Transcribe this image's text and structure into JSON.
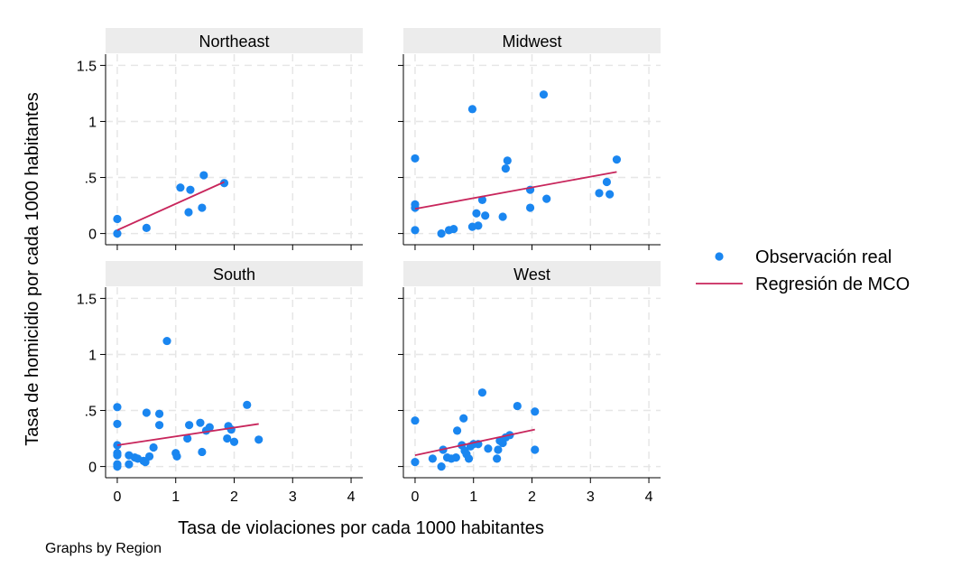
{
  "chart_data": {
    "type": "scatter",
    "xlabel": "Tasa de violaciones por cada 1000 habitantes",
    "ylabel": "Tasa de homicidio por cada 1000 habitantes",
    "xticks": [
      "0",
      "1",
      "2",
      "3",
      "4"
    ],
    "yticks": [
      "0",
      ".5",
      "1",
      "1.5"
    ],
    "xlim": [
      -0.2,
      4.2
    ],
    "ylim": [
      -0.1,
      1.6
    ],
    "grid": true,
    "legend_position": "right",
    "legend": [
      {
        "label": "Observación real",
        "kind": "point",
        "color": "#1a86f0"
      },
      {
        "label": "Regresión de MCO",
        "kind": "line",
        "color": "#c8265c"
      }
    ],
    "colors": {
      "points": "#1a86f0",
      "fit_line": "#c8265c",
      "strip": "#ececec",
      "grid": "#e6e6e6"
    },
    "panels": [
      {
        "title": "Northeast",
        "points": [
          [
            0.0,
            0.0
          ],
          [
            0.0,
            0.13
          ],
          [
            0.5,
            0.05
          ],
          [
            1.08,
            0.41
          ],
          [
            1.25,
            0.39
          ],
          [
            1.22,
            0.19
          ],
          [
            1.45,
            0.23
          ],
          [
            1.48,
            0.52
          ],
          [
            1.83,
            0.45
          ]
        ],
        "fit": [
          [
            0.0,
            0.03
          ],
          [
            1.83,
            0.46
          ]
        ]
      },
      {
        "title": "Midwest",
        "points": [
          [
            0.0,
            0.67
          ],
          [
            0.0,
            0.26
          ],
          [
            0.0,
            0.23
          ],
          [
            0.0,
            0.03
          ],
          [
            0.45,
            0.0
          ],
          [
            0.58,
            0.03
          ],
          [
            0.66,
            0.04
          ],
          [
            0.98,
            1.11
          ],
          [
            0.98,
            0.06
          ],
          [
            1.05,
            0.18
          ],
          [
            1.08,
            0.07
          ],
          [
            1.15,
            0.3
          ],
          [
            1.2,
            0.16
          ],
          [
            1.5,
            0.15
          ],
          [
            1.55,
            0.58
          ],
          [
            1.58,
            0.65
          ],
          [
            1.97,
            0.39
          ],
          [
            1.97,
            0.23
          ],
          [
            2.2,
            1.24
          ],
          [
            2.25,
            0.31
          ],
          [
            3.15,
            0.36
          ],
          [
            3.28,
            0.46
          ],
          [
            3.33,
            0.35
          ],
          [
            3.45,
            0.66
          ]
        ],
        "fit": [
          [
            0.0,
            0.22
          ],
          [
            3.45,
            0.55
          ]
        ]
      },
      {
        "title": "South",
        "points": [
          [
            0.0,
            0.53
          ],
          [
            0.0,
            0.38
          ],
          [
            0.0,
            0.19
          ],
          [
            0.0,
            0.12
          ],
          [
            0.0,
            0.1
          ],
          [
            0.0,
            0.02
          ],
          [
            0.0,
            0.0
          ],
          [
            0.2,
            0.1
          ],
          [
            0.2,
            0.02
          ],
          [
            0.3,
            0.08
          ],
          [
            0.35,
            0.07
          ],
          [
            0.45,
            0.05
          ],
          [
            0.48,
            0.04
          ],
          [
            0.5,
            0.48
          ],
          [
            0.55,
            0.09
          ],
          [
            0.62,
            0.17
          ],
          [
            0.72,
            0.37
          ],
          [
            0.72,
            0.47
          ],
          [
            0.85,
            1.12
          ],
          [
            1.0,
            0.12
          ],
          [
            1.02,
            0.09
          ],
          [
            1.2,
            0.25
          ],
          [
            1.23,
            0.37
          ],
          [
            1.42,
            0.39
          ],
          [
            1.45,
            0.13
          ],
          [
            1.52,
            0.32
          ],
          [
            1.58,
            0.35
          ],
          [
            1.88,
            0.25
          ],
          [
            1.9,
            0.36
          ],
          [
            1.95,
            0.33
          ],
          [
            2.0,
            0.22
          ],
          [
            2.22,
            0.55
          ],
          [
            2.42,
            0.24
          ]
        ],
        "fit": [
          [
            0.0,
            0.19
          ],
          [
            2.42,
            0.38
          ]
        ]
      },
      {
        "title": "West",
        "points": [
          [
            0.0,
            0.41
          ],
          [
            0.0,
            0.04
          ],
          [
            0.3,
            0.07
          ],
          [
            0.45,
            0.0
          ],
          [
            0.48,
            0.15
          ],
          [
            0.55,
            0.08
          ],
          [
            0.62,
            0.07
          ],
          [
            0.7,
            0.08
          ],
          [
            0.72,
            0.32
          ],
          [
            0.8,
            0.19
          ],
          [
            0.83,
            0.43
          ],
          [
            0.85,
            0.14
          ],
          [
            0.88,
            0.11
          ],
          [
            0.92,
            0.07
          ],
          [
            0.95,
            0.18
          ],
          [
            1.0,
            0.2
          ],
          [
            1.08,
            0.2
          ],
          [
            1.15,
            0.66
          ],
          [
            1.25,
            0.16
          ],
          [
            1.4,
            0.07
          ],
          [
            1.42,
            0.15
          ],
          [
            1.45,
            0.23
          ],
          [
            1.5,
            0.21
          ],
          [
            1.55,
            0.26
          ],
          [
            1.62,
            0.28
          ],
          [
            1.75,
            0.54
          ],
          [
            2.05,
            0.49
          ],
          [
            2.05,
            0.15
          ]
        ],
        "fit": [
          [
            0.0,
            0.1
          ],
          [
            2.05,
            0.33
          ]
        ]
      }
    ],
    "note": "Graphs by Region"
  }
}
